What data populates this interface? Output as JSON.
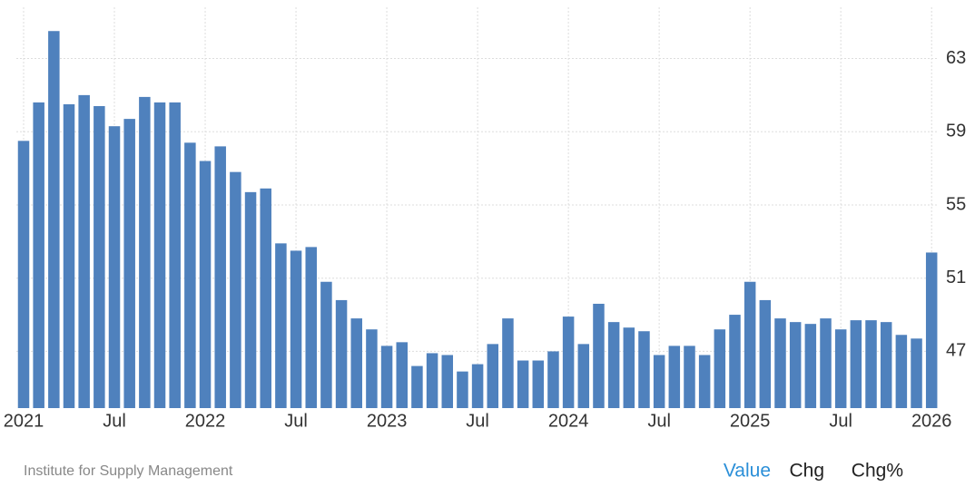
{
  "chart_data": {
    "type": "bar",
    "categories": [
      "2021",
      null,
      null,
      null,
      null,
      null,
      "Jul",
      null,
      null,
      null,
      null,
      null,
      "2022",
      null,
      null,
      null,
      null,
      null,
      "Jul",
      null,
      null,
      null,
      null,
      null,
      "2023",
      null,
      null,
      null,
      null,
      null,
      "Jul",
      null,
      null,
      null,
      null,
      null,
      "2024",
      null,
      null,
      null,
      null,
      null,
      "Jul",
      null,
      null,
      null,
      null,
      null,
      "2025",
      null,
      null,
      null,
      null,
      null,
      "Jul",
      null,
      null,
      null,
      null,
      null,
      "2026"
    ],
    "values": [
      58.5,
      60.6,
      64.5,
      60.5,
      61.0,
      60.4,
      59.3,
      59.7,
      60.9,
      60.6,
      60.6,
      58.4,
      57.4,
      58.2,
      56.8,
      55.7,
      55.9,
      52.9,
      52.5,
      52.7,
      50.8,
      49.8,
      48.8,
      48.2,
      47.3,
      47.5,
      46.2,
      46.9,
      46.8,
      45.9,
      46.3,
      47.4,
      48.8,
      46.5,
      46.5,
      47.0,
      48.9,
      47.4,
      49.6,
      48.6,
      48.3,
      48.1,
      46.8,
      47.3,
      47.3,
      46.8,
      48.2,
      49.0,
      50.8,
      49.8,
      48.8,
      48.6,
      48.5,
      48.8,
      48.2,
      48.7,
      48.7,
      48.6,
      47.9,
      47.7,
      52.4
    ],
    "color": "#4f81bd",
    "ylim": [
      43.9,
      65.8
    ],
    "yticks": [
      47,
      51,
      55,
      59,
      63
    ],
    "grid": true,
    "source": "Institute for Supply Management",
    "tabs": [
      "Value",
      "Chg",
      "Chg%"
    ],
    "active_tab": 0
  }
}
